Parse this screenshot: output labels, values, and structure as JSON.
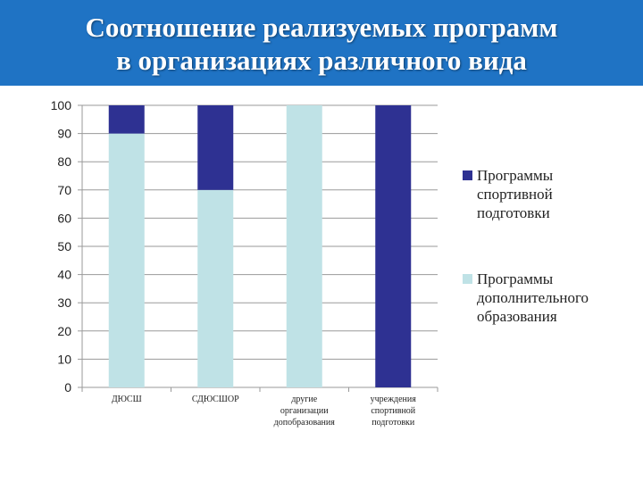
{
  "header": {
    "title_line1": "Соотношение реализуемых программ",
    "title_line2": "в организациях различного вида"
  },
  "chart_data": {
    "type": "bar",
    "stacked": true,
    "categories": [
      [
        "ДЮСШ"
      ],
      [
        "СДЮСШОР"
      ],
      [
        "другие",
        "организации",
        "допобразования"
      ],
      [
        "учреждения",
        "спортивной",
        "подготовки"
      ]
    ],
    "series": [
      {
        "name": "Программы спортивной подготовки",
        "values": [
          10,
          30,
          0,
          100
        ],
        "color": "#2e3192"
      },
      {
        "name": "Программы дополнительного образования",
        "values": [
          90,
          70,
          100,
          0
        ],
        "color": "#bfe2e6"
      }
    ],
    "stack_order": [
      "Программы дополнительного образования",
      "Программы спортивной подготовки"
    ],
    "ylim": [
      0,
      100
    ],
    "yticks": [
      0,
      10,
      20,
      30,
      40,
      50,
      60,
      70,
      80,
      90,
      100
    ],
    "grid": true,
    "legend_position": "right",
    "legend_lines": [
      [
        "Программы",
        "спортивной",
        "подготовки"
      ],
      [
        "Программы",
        "дополнительного",
        "образования"
      ]
    ]
  }
}
